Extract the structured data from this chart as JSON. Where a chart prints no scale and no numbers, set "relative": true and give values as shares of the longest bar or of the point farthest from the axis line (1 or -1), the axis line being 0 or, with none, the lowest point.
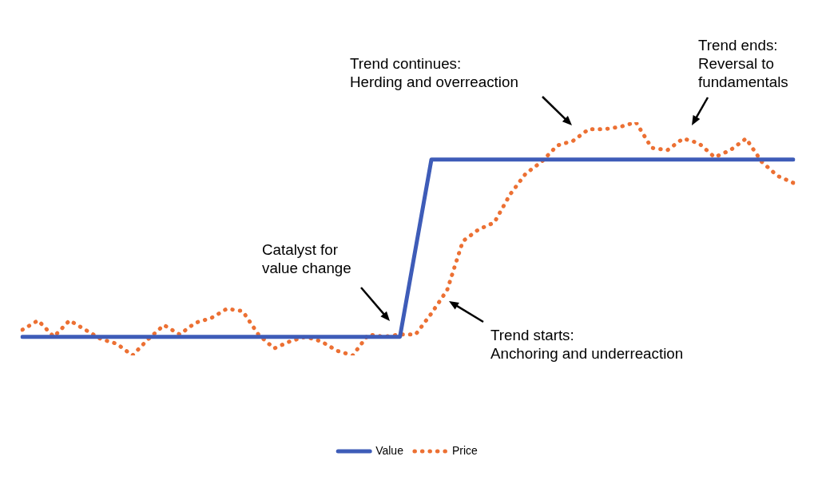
{
  "chart_data": {
    "type": "line",
    "relative": true,
    "categories": [
      null,
      null,
      null,
      null,
      null,
      null,
      null,
      null,
      null,
      null,
      null,
      null,
      null,
      null,
      null,
      null,
      null,
      null,
      null,
      null,
      null,
      null,
      null,
      null,
      null,
      null,
      null,
      null,
      null,
      null,
      null,
      null,
      null,
      null,
      null,
      null,
      null,
      null,
      null,
      null,
      null,
      null,
      null,
      null,
      null,
      null,
      null,
      null,
      null,
      null
    ],
    "series": [
      {
        "name": "Value",
        "color": "#3e5cb8",
        "line_style": "solid",
        "values": [
          0.08,
          0.08,
          0.08,
          0.08,
          0.08,
          0.08,
          0.08,
          0.08,
          0.08,
          0.08,
          0.08,
          0.08,
          0.08,
          0.08,
          0.08,
          0.08,
          0.08,
          0.08,
          0.08,
          0.08,
          0.08,
          0.08,
          0.08,
          0.08,
          0.08,
          0.46,
          0.84,
          0.84,
          0.84,
          0.84,
          0.84,
          0.84,
          0.84,
          0.84,
          0.84,
          0.84,
          0.84,
          0.84,
          0.84,
          0.84,
          0.84,
          0.84,
          0.84,
          0.84,
          0.84,
          0.84,
          0.84,
          0.84,
          0.84,
          0.84
        ]
      },
      {
        "name": "Price",
        "color": "#ec7033",
        "line_style": "dotted",
        "values": [
          0.11,
          0.15,
          0.08,
          0.15,
          0.11,
          0.07,
          0.05,
          0,
          0.07,
          0.13,
          0.09,
          0.14,
          0.16,
          0.2,
          0.19,
          0.09,
          0.03,
          0.06,
          0.08,
          0.06,
          0.02,
          0,
          0.09,
          0.08,
          0.09,
          0.09,
          0.18,
          0.28,
          0.49,
          0.54,
          0.57,
          0.69,
          0.78,
          0.83,
          0.9,
          0.92,
          0.97,
          0.97,
          0.98,
          1,
          0.89,
          0.88,
          0.93,
          0.91,
          0.85,
          0.88,
          0.93,
          0.83,
          0.77,
          0.74
        ]
      }
    ],
    "legend": "bottom",
    "annotations": [
      "Catalyst for\nvalue change",
      "Trend starts:\nAnchoring and underreaction",
      "Trend continues:\nHerding and overreaction",
      "Trend ends:\nReversal to\nfundamentals"
    ]
  }
}
